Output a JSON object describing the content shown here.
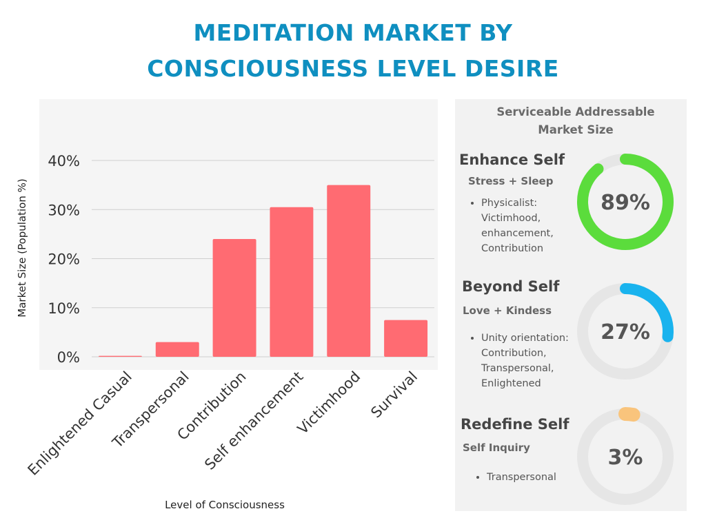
{
  "header": {
    "title_line1": "MEDITATION MARKET BY",
    "title_line2": "CONSCIOUSNESS LEVEL DESIRE"
  },
  "colors": {
    "title": "#0f8fc0",
    "bar": "#ff6b72",
    "chart_bg": "#f5f5f5",
    "panel_bg": "#f2f2f2",
    "donut_track": "#e6e6e6"
  },
  "chart_data": {
    "type": "bar",
    "categories": [
      "Enlightened Casual",
      "Transpersonal",
      "Contribution",
      "Self enhancement",
      "Victimhood",
      "Survival"
    ],
    "values": [
      0.2,
      3,
      24,
      30.5,
      35,
      7.5
    ],
    "xlabel": "Level of Consciousness",
    "ylabel": "Market Size (Population %)",
    "ylim": [
      0,
      40
    ],
    "yticks": [
      0,
      10,
      20,
      30,
      40
    ],
    "ytick_labels": [
      "0%",
      "10%",
      "20%",
      "30%",
      "40%"
    ],
    "grid": true,
    "legend": "none"
  },
  "panel": {
    "title_line1": "Serviceable Addressable",
    "title_line2": "Market Size",
    "segments": [
      {
        "title": "Enhance Self",
        "subtitle": "Stress + Sleep",
        "bullets": [
          "Physicalist:",
          "Victimhood,",
          "enhancement,",
          "Contribution"
        ],
        "percent": 89,
        "percent_label": "89%",
        "color": "#5bdc3c"
      },
      {
        "title": "Beyond Self",
        "subtitle": "Love + Kindess",
        "bullets": [
          "Unity orientation:",
          "Contribution,",
          "Transpersonal,",
          "Enlightened"
        ],
        "percent": 27,
        "percent_label": "27%",
        "color": "#19b3ee"
      },
      {
        "title": "Redefine Self",
        "subtitle": "Self Inquiry",
        "bullets": [
          "Transpersonal"
        ],
        "percent": 3,
        "percent_label": "3%",
        "color": "#f9c47c"
      }
    ]
  }
}
